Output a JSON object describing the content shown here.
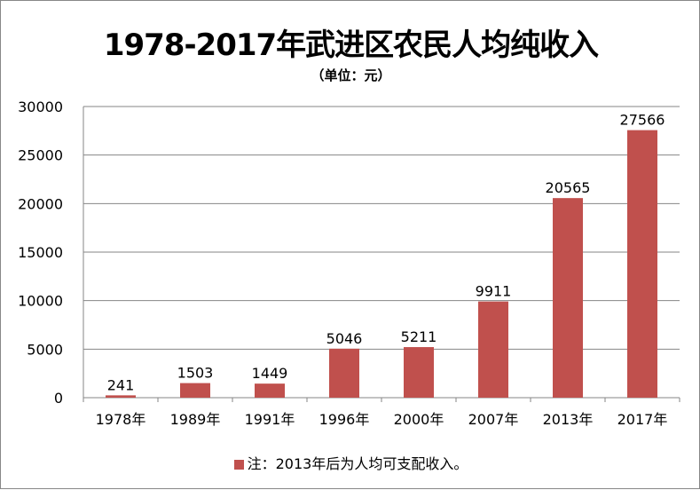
{
  "chart_data": {
    "type": "bar",
    "title": "1978-2017年武进区农民人均纯收入",
    "subtitle": "（单位：元）",
    "categories": [
      "1978年",
      "1989年",
      "1991年",
      "1996年",
      "2000年",
      "2007年",
      "2013年",
      "2017年"
    ],
    "values": [
      241,
      1503,
      1449,
      5046,
      5211,
      9911,
      20565,
      27566
    ],
    "ylim": [
      0,
      30000
    ],
    "yticks": [
      0,
      5000,
      10000,
      15000,
      20000,
      25000,
      30000
    ],
    "xlabel": "",
    "ylabel": "",
    "grid": true,
    "legend_label": "注：2013年后为人均可支配收入。",
    "bar_color": "#C0504D"
  }
}
